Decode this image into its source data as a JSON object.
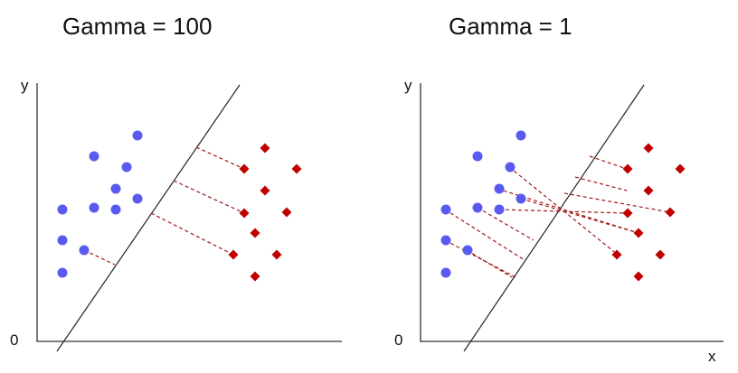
{
  "panels": [
    {
      "title": "Gamma = 100",
      "y_label": "y",
      "origin_label": "0",
      "x_label": ""
    },
    {
      "title": "Gamma = 1",
      "y_label": "y",
      "origin_label": "0",
      "x_label": "x"
    }
  ],
  "colors": {
    "class_a": "#5a5af0",
    "class_b": "#c00000",
    "links": "#a01818"
  }
}
